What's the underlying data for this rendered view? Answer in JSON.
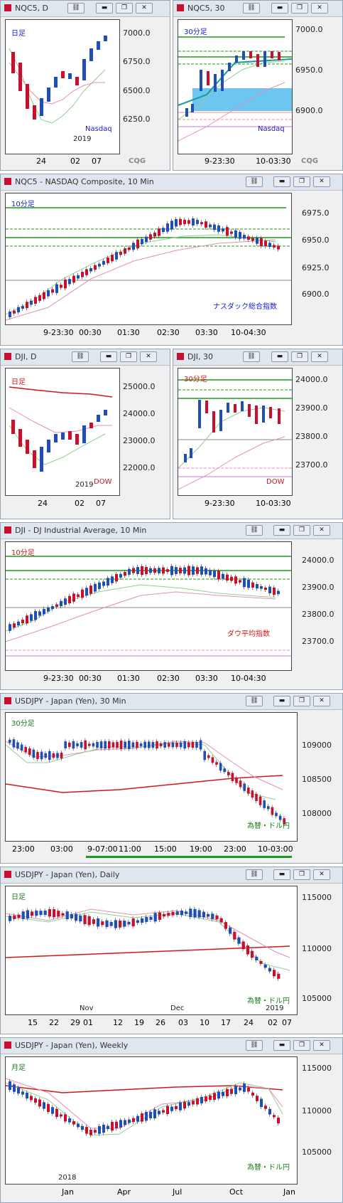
{
  "windows": [
    {
      "id": "w1",
      "title": "NQC5, D",
      "y_ticks": [
        "7000.0",
        "6750.0",
        "6500.0",
        "6250.0"
      ],
      "x_ticks": [
        "24",
        "02",
        "07"
      ],
      "year": "2019",
      "timeframe": "日足",
      "caption": "Nasdaq",
      "logo": "CQG"
    },
    {
      "id": "w2",
      "title": "NQC5, 30",
      "y_ticks": [
        "7000.0",
        "6950.0",
        "6900.0"
      ],
      "x_ticks": [
        "9-23:30",
        "10-03:30"
      ],
      "timeframe": "30分足",
      "caption": "Nasdaq",
      "logo": "CQG"
    },
    {
      "id": "w3",
      "title": "NQC5 - NASDAQ Composite, 10 Min",
      "y_ticks": [
        "6975.0",
        "6950.0",
        "6925.0",
        "6900.0"
      ],
      "x_ticks": [
        "9-23:30",
        "00:30",
        "01:30",
        "02:30",
        "03:30",
        "10-04:30"
      ],
      "timeframe": "10分足",
      "caption": "ナスダック総合指数"
    },
    {
      "id": "w4",
      "title": "DJI, D",
      "y_ticks": [
        "25000.0",
        "24000.0",
        "23000.0",
        "22000.0"
      ],
      "x_ticks": [
        "24",
        "02",
        "07"
      ],
      "year": "2019",
      "timeframe": "日足",
      "caption": "DOW"
    },
    {
      "id": "w5",
      "title": "DJI, 30",
      "y_ticks": [
        "24000.0",
        "23900.0",
        "23800.0",
        "23700.0"
      ],
      "x_ticks": [
        "9-23:30",
        "10-03:30"
      ],
      "timeframe": "30分足",
      "caption": "DOW"
    },
    {
      "id": "w6",
      "title": "DJI - DJ Industrial Average, 10 Min",
      "y_ticks": [
        "24000.0",
        "23900.0",
        "23800.0",
        "23700.0"
      ],
      "x_ticks": [
        "9-23:30",
        "00:30",
        "01:30",
        "02:30",
        "03:30",
        "10-04:30"
      ],
      "timeframe": "10分足",
      "caption": "ダウ平均指数"
    },
    {
      "id": "w7",
      "title": "USDJPY - Japan (Yen), 30 Min",
      "y_ticks": [
        "109000",
        "108500",
        "108000"
      ],
      "x_ticks": [
        "23:00",
        "03:00",
        "9-07:00",
        "11:00",
        "15:00",
        "19:00",
        "23:00",
        "10-03:00"
      ],
      "timeframe": "30分足",
      "caption": "為替・ドル円"
    },
    {
      "id": "w8",
      "title": "USDJPY - Japan (Yen), Daily",
      "y_ticks": [
        "115000",
        "110000",
        "105000"
      ],
      "x_ticks": [
        "15",
        "22",
        "29",
        "01",
        "12",
        "19",
        "26",
        "03",
        "10",
        "17",
        "24",
        "02",
        "07"
      ],
      "month_labels": [
        "Nov",
        "Dec",
        "2019"
      ],
      "timeframe": "日足",
      "caption": "為替・ドル円"
    },
    {
      "id": "w9",
      "title": "USDJPY - Japan (Yen), Weekly",
      "y_ticks": [
        "115000",
        "110000",
        "105000"
      ],
      "x_ticks": [
        "Jan",
        "Apr",
        "Jul",
        "Oct",
        "Jan"
      ],
      "year": "2018",
      "timeframe": "月足",
      "caption": "為替・ドル円"
    }
  ],
  "colors": {
    "up": "#1f4fb4",
    "down": "#c8102e",
    "ma_green": "#1a9b1a",
    "ma_pink": "#e58fb4",
    "ma_red": "#d01818",
    "band": "#6cc6f0",
    "blue_caption": "#1a1ad0",
    "red_caption": "#d01818",
    "green_caption": "#1a7a1a"
  }
}
